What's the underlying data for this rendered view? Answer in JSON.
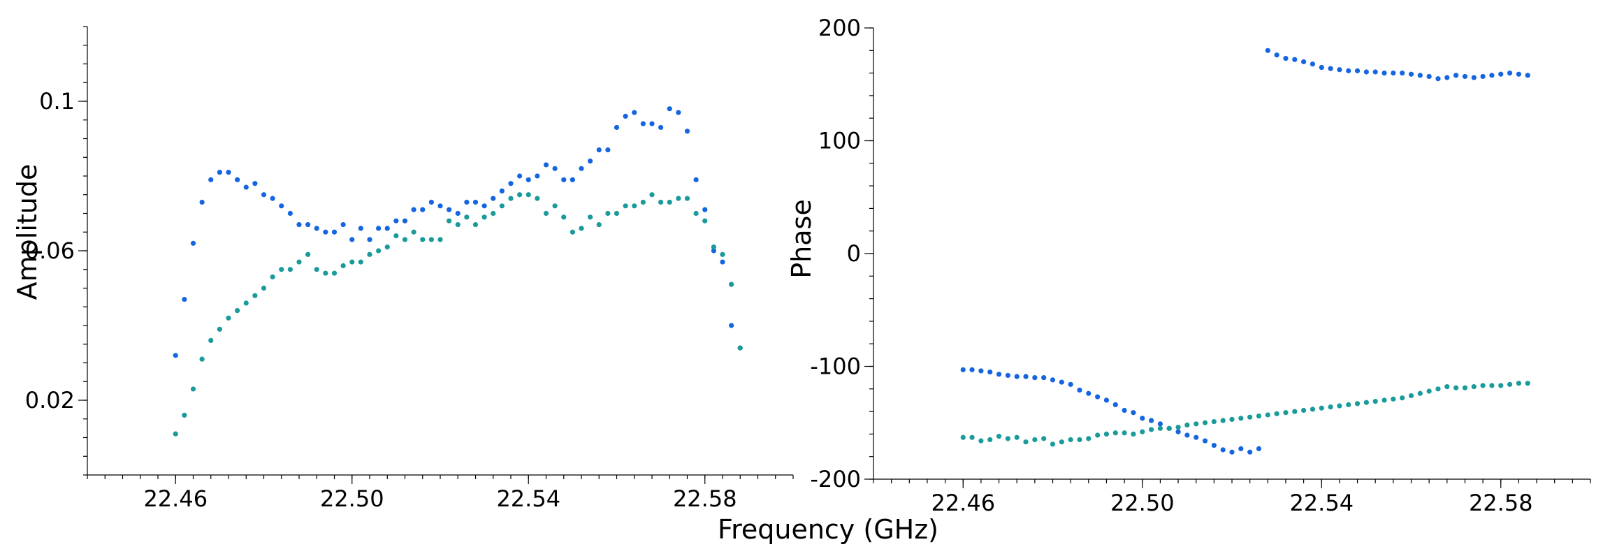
{
  "figure": {
    "xlabel": "Frequency (GHz)"
  },
  "colors": {
    "series_blue": "#1565e0",
    "series_teal": "#1a9a9a",
    "axis": "#000000"
  },
  "chart_data": [
    {
      "type": "scatter",
      "title": "",
      "xlabel": "Frequency (GHz)",
      "ylabel": "Amplitude",
      "xlim": [
        22.44,
        22.6
      ],
      "ylim": [
        0.0,
        0.12
      ],
      "xticks": [
        22.46,
        22.5,
        22.54,
        22.58
      ],
      "xtick_labels": [
        "22.46",
        "22.50",
        "22.54",
        "22.58"
      ],
      "yticks": [
        0.02,
        0.06,
        0.1
      ],
      "ytick_labels": [
        "0.02",
        "0.06",
        "0.1"
      ],
      "grid": false,
      "series": [
        {
          "color": "#1565e0",
          "x": [
            22.46,
            22.462,
            22.464,
            22.466,
            22.468,
            22.47,
            22.472,
            22.474,
            22.476,
            22.478,
            22.48,
            22.482,
            22.484,
            22.486,
            22.488,
            22.49,
            22.492,
            22.494,
            22.496,
            22.498,
            22.5,
            22.502,
            22.504,
            22.506,
            22.508,
            22.51,
            22.512,
            22.514,
            22.516,
            22.518,
            22.52,
            22.522,
            22.524,
            22.526,
            22.528,
            22.53,
            22.532,
            22.534,
            22.536,
            22.538,
            22.54,
            22.542,
            22.544,
            22.546,
            22.548,
            22.55,
            22.552,
            22.554,
            22.556,
            22.558,
            22.56,
            22.562,
            22.564,
            22.566,
            22.568,
            22.57,
            22.572,
            22.574,
            22.576,
            22.578,
            22.58,
            22.582,
            22.584,
            22.586,
            22.588
          ],
          "y": [
            0.032,
            0.047,
            0.062,
            0.073,
            0.079,
            0.081,
            0.081,
            0.079,
            0.077,
            0.078,
            0.075,
            0.074,
            0.072,
            0.07,
            0.067,
            0.067,
            0.066,
            0.065,
            0.065,
            0.067,
            0.063,
            0.066,
            0.063,
            0.066,
            0.066,
            0.068,
            0.068,
            0.071,
            0.071,
            0.073,
            0.072,
            0.071,
            0.07,
            0.073,
            0.073,
            0.072,
            0.074,
            0.076,
            0.078,
            0.08,
            0.079,
            0.08,
            0.083,
            0.082,
            0.079,
            0.079,
            0.082,
            0.084,
            0.087,
            0.087,
            0.093,
            0.096,
            0.097,
            0.094,
            0.094,
            0.093,
            0.098,
            0.097,
            0.092,
            0.079,
            0.071,
            0.06,
            0.057,
            0.04,
            0.034
          ]
        },
        {
          "color": "#1a9a9a",
          "x": [
            22.46,
            22.462,
            22.464,
            22.466,
            22.468,
            22.47,
            22.472,
            22.474,
            22.476,
            22.478,
            22.48,
            22.482,
            22.484,
            22.486,
            22.488,
            22.49,
            22.492,
            22.494,
            22.496,
            22.498,
            22.5,
            22.502,
            22.504,
            22.506,
            22.508,
            22.51,
            22.512,
            22.514,
            22.516,
            22.518,
            22.52,
            22.522,
            22.524,
            22.526,
            22.528,
            22.53,
            22.532,
            22.534,
            22.536,
            22.538,
            22.54,
            22.542,
            22.544,
            22.546,
            22.548,
            22.55,
            22.552,
            22.554,
            22.556,
            22.558,
            22.56,
            22.562,
            22.564,
            22.566,
            22.568,
            22.57,
            22.572,
            22.574,
            22.576,
            22.578,
            22.58,
            22.582,
            22.584,
            22.586,
            22.588
          ],
          "y": [
            0.011,
            0.016,
            0.023,
            0.031,
            0.036,
            0.039,
            0.042,
            0.044,
            0.046,
            0.048,
            0.05,
            0.053,
            0.055,
            0.055,
            0.057,
            0.059,
            0.055,
            0.054,
            0.054,
            0.056,
            0.057,
            0.057,
            0.059,
            0.06,
            0.061,
            0.064,
            0.063,
            0.065,
            0.063,
            0.063,
            0.063,
            0.068,
            0.067,
            0.069,
            0.067,
            0.069,
            0.07,
            0.072,
            0.074,
            0.075,
            0.075,
            0.074,
            0.07,
            0.072,
            0.069,
            0.065,
            0.066,
            0.069,
            0.067,
            0.07,
            0.07,
            0.072,
            0.072,
            0.073,
            0.075,
            0.073,
            0.073,
            0.074,
            0.074,
            0.07,
            0.068,
            0.061,
            0.059,
            0.051,
            0.034
          ]
        }
      ]
    },
    {
      "type": "scatter",
      "title": "",
      "xlabel": "Frequency (GHz)",
      "ylabel": "Phase",
      "xlim": [
        22.44,
        22.6
      ],
      "ylim": [
        -200,
        200
      ],
      "xticks": [
        22.46,
        22.5,
        22.54,
        22.58
      ],
      "xtick_labels": [
        "22.46",
        "22.50",
        "22.54",
        "22.58"
      ],
      "yticks": [
        -200,
        -100,
        0,
        100,
        200
      ],
      "ytick_labels": [
        "-200",
        "-100",
        "0",
        "100",
        "200"
      ],
      "grid": false,
      "series": [
        {
          "color": "#1565e0",
          "x": [
            22.46,
            22.462,
            22.464,
            22.466,
            22.468,
            22.47,
            22.472,
            22.474,
            22.476,
            22.478,
            22.48,
            22.482,
            22.484,
            22.486,
            22.488,
            22.49,
            22.492,
            22.494,
            22.496,
            22.498,
            22.5,
            22.502,
            22.504,
            22.506,
            22.508,
            22.51,
            22.512,
            22.514,
            22.516,
            22.518,
            22.52,
            22.522,
            22.524,
            22.526,
            22.528,
            22.53,
            22.532,
            22.534,
            22.536,
            22.538,
            22.54,
            22.542,
            22.544,
            22.546,
            22.548,
            22.55,
            22.552,
            22.554,
            22.556,
            22.558,
            22.56,
            22.562,
            22.564,
            22.566,
            22.568,
            22.57,
            22.572,
            22.574,
            22.576,
            22.578,
            22.58,
            22.582,
            22.584,
            22.586
          ],
          "y": [
            -103,
            -103,
            -104,
            -105,
            -107,
            -108,
            -109,
            -109,
            -110,
            -110,
            -112,
            -114,
            -116,
            -121,
            -124,
            -127,
            -130,
            -134,
            -139,
            -141,
            -146,
            -148,
            -151,
            -155,
            -158,
            -161,
            -163,
            -166,
            -170,
            -174,
            -176,
            -173,
            -176,
            -173,
            180,
            176,
            173,
            172,
            170,
            168,
            165,
            164,
            163,
            162,
            162,
            161,
            161,
            160,
            160,
            160,
            159,
            158,
            157,
            155,
            156,
            158,
            157,
            156,
            157,
            158,
            159,
            160,
            159,
            158
          ]
        },
        {
          "color": "#1a9a9a",
          "x": [
            22.46,
            22.462,
            22.464,
            22.466,
            22.468,
            22.47,
            22.472,
            22.474,
            22.476,
            22.478,
            22.48,
            22.482,
            22.484,
            22.486,
            22.488,
            22.49,
            22.492,
            22.494,
            22.496,
            22.498,
            22.5,
            22.502,
            22.504,
            22.506,
            22.508,
            22.51,
            22.512,
            22.514,
            22.516,
            22.518,
            22.52,
            22.522,
            22.524,
            22.526,
            22.528,
            22.53,
            22.532,
            22.534,
            22.536,
            22.538,
            22.54,
            22.542,
            22.544,
            22.546,
            22.548,
            22.55,
            22.552,
            22.554,
            22.556,
            22.558,
            22.56,
            22.562,
            22.564,
            22.566,
            22.568,
            22.57,
            22.572,
            22.574,
            22.576,
            22.578,
            22.58,
            22.582,
            22.584,
            22.586
          ],
          "y": [
            -163,
            -163,
            -166,
            -165,
            -162,
            -164,
            -163,
            -167,
            -165,
            -164,
            -169,
            -167,
            -165,
            -165,
            -164,
            -161,
            -160,
            -159,
            -159,
            -160,
            -158,
            -156,
            -155,
            -155,
            -154,
            -152,
            -151,
            -150,
            -149,
            -148,
            -147,
            -146,
            -145,
            -144,
            -143,
            -142,
            -141,
            -140,
            -139,
            -138,
            -137,
            -136,
            -135,
            -134,
            -133,
            -132,
            -131,
            -130,
            -129,
            -128,
            -126,
            -124,
            -122,
            -120,
            -118,
            -119,
            -119,
            -118,
            -117,
            -117,
            -117,
            -116,
            -115,
            -115
          ]
        }
      ]
    }
  ]
}
